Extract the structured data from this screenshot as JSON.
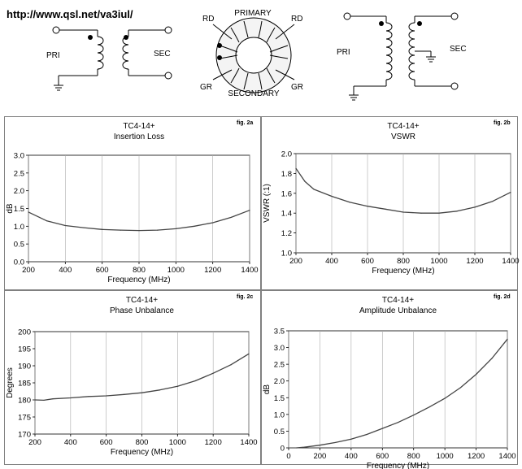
{
  "header": {
    "url": "http://www.qsl.net/va3iul/"
  },
  "schematics": {
    "left": {
      "pri": "PRI",
      "sec": "SEC"
    },
    "toroid": {
      "primary": "PRIMARY",
      "secondary": "SECONDARY",
      "rd_left": "RD",
      "rd_right": "RD",
      "gr_left": "GR",
      "gr_right": "GR"
    },
    "right": {
      "pri": "PRI",
      "sec": "SEC"
    }
  },
  "chart_data": [
    {
      "type": "line",
      "fig": "fig. 2a",
      "title": "TC4-14+",
      "subtitle": "Insertion Loss",
      "xlabel": "Frequency (MHz)",
      "ylabel": "dB",
      "xlim": [
        200,
        1400
      ],
      "ylim": [
        0,
        3
      ],
      "xticks": [
        200,
        400,
        600,
        800,
        1000,
        1200,
        1400
      ],
      "yticks": [
        "0.0",
        "0.5",
        "1.0",
        "1.5",
        "2.0",
        "2.5",
        "3.0"
      ],
      "grid": "vertical",
      "x": [
        200,
        300,
        400,
        500,
        600,
        700,
        800,
        900,
        1000,
        1100,
        1200,
        1300,
        1400
      ],
      "y": [
        1.4,
        1.15,
        1.02,
        0.96,
        0.91,
        0.89,
        0.88,
        0.89,
        0.93,
        1.0,
        1.1,
        1.25,
        1.45
      ]
    },
    {
      "type": "line",
      "fig": "fig. 2b",
      "title": "TC4-14+",
      "subtitle": "VSWR",
      "xlabel": "Frequency (MHz)",
      "ylabel": "VSWR (:1)",
      "xlim": [
        200,
        1400
      ],
      "ylim": [
        1.0,
        2.0
      ],
      "xticks": [
        200,
        400,
        600,
        800,
        1000,
        1200,
        1400
      ],
      "yticks": [
        "1.0",
        "1.2",
        "1.4",
        "1.6",
        "1.8",
        "2.0"
      ],
      "grid": "vertical",
      "x": [
        200,
        250,
        300,
        400,
        500,
        600,
        700,
        800,
        900,
        1000,
        1100,
        1200,
        1300,
        1400
      ],
      "y": [
        1.85,
        1.72,
        1.64,
        1.57,
        1.51,
        1.47,
        1.44,
        1.41,
        1.4,
        1.4,
        1.42,
        1.46,
        1.52,
        1.61
      ]
    },
    {
      "type": "line",
      "fig": "fig. 2c",
      "title": "TC4-14+",
      "subtitle": "Phase Unbalance",
      "xlabel": "Frequency (MHz)",
      "ylabel": "Degrees",
      "xlim": [
        200,
        1400
      ],
      "ylim": [
        170,
        200
      ],
      "xticks": [
        200,
        400,
        600,
        800,
        1000,
        1200,
        1400
      ],
      "yticks": [
        "170",
        "175",
        "180",
        "185",
        "190",
        "195",
        "200"
      ],
      "grid": "vertical",
      "x": [
        200,
        250,
        300,
        400,
        500,
        600,
        700,
        800,
        900,
        1000,
        1100,
        1200,
        1300,
        1400
      ],
      "y": [
        180.0,
        179.9,
        180.3,
        180.6,
        181.0,
        181.2,
        181.6,
        182.1,
        182.9,
        184.0,
        185.6,
        187.8,
        190.3,
        193.5
      ]
    },
    {
      "type": "line",
      "fig": "fig. 2d",
      "title": "TC4-14+",
      "subtitle": "Amplitude Unbalance",
      "xlabel": "Frequency (MHz)",
      "ylabel": "dB",
      "xlim": [
        0,
        1400
      ],
      "ylim": [
        0,
        3.5
      ],
      "xticks": [
        0,
        200,
        400,
        600,
        800,
        1000,
        1200,
        1400
      ],
      "yticks": [
        "0",
        "0.5",
        "1.0",
        "1.5",
        "2.0",
        "2.5",
        "3.0",
        "3.5"
      ],
      "grid": "vertical",
      "x": [
        50,
        100,
        200,
        300,
        400,
        500,
        600,
        700,
        800,
        900,
        1000,
        1100,
        1200,
        1300,
        1400
      ],
      "y": [
        0.0,
        0.02,
        0.08,
        0.16,
        0.26,
        0.4,
        0.58,
        0.76,
        0.98,
        1.22,
        1.48,
        1.8,
        2.2,
        2.67,
        3.25
      ]
    }
  ]
}
